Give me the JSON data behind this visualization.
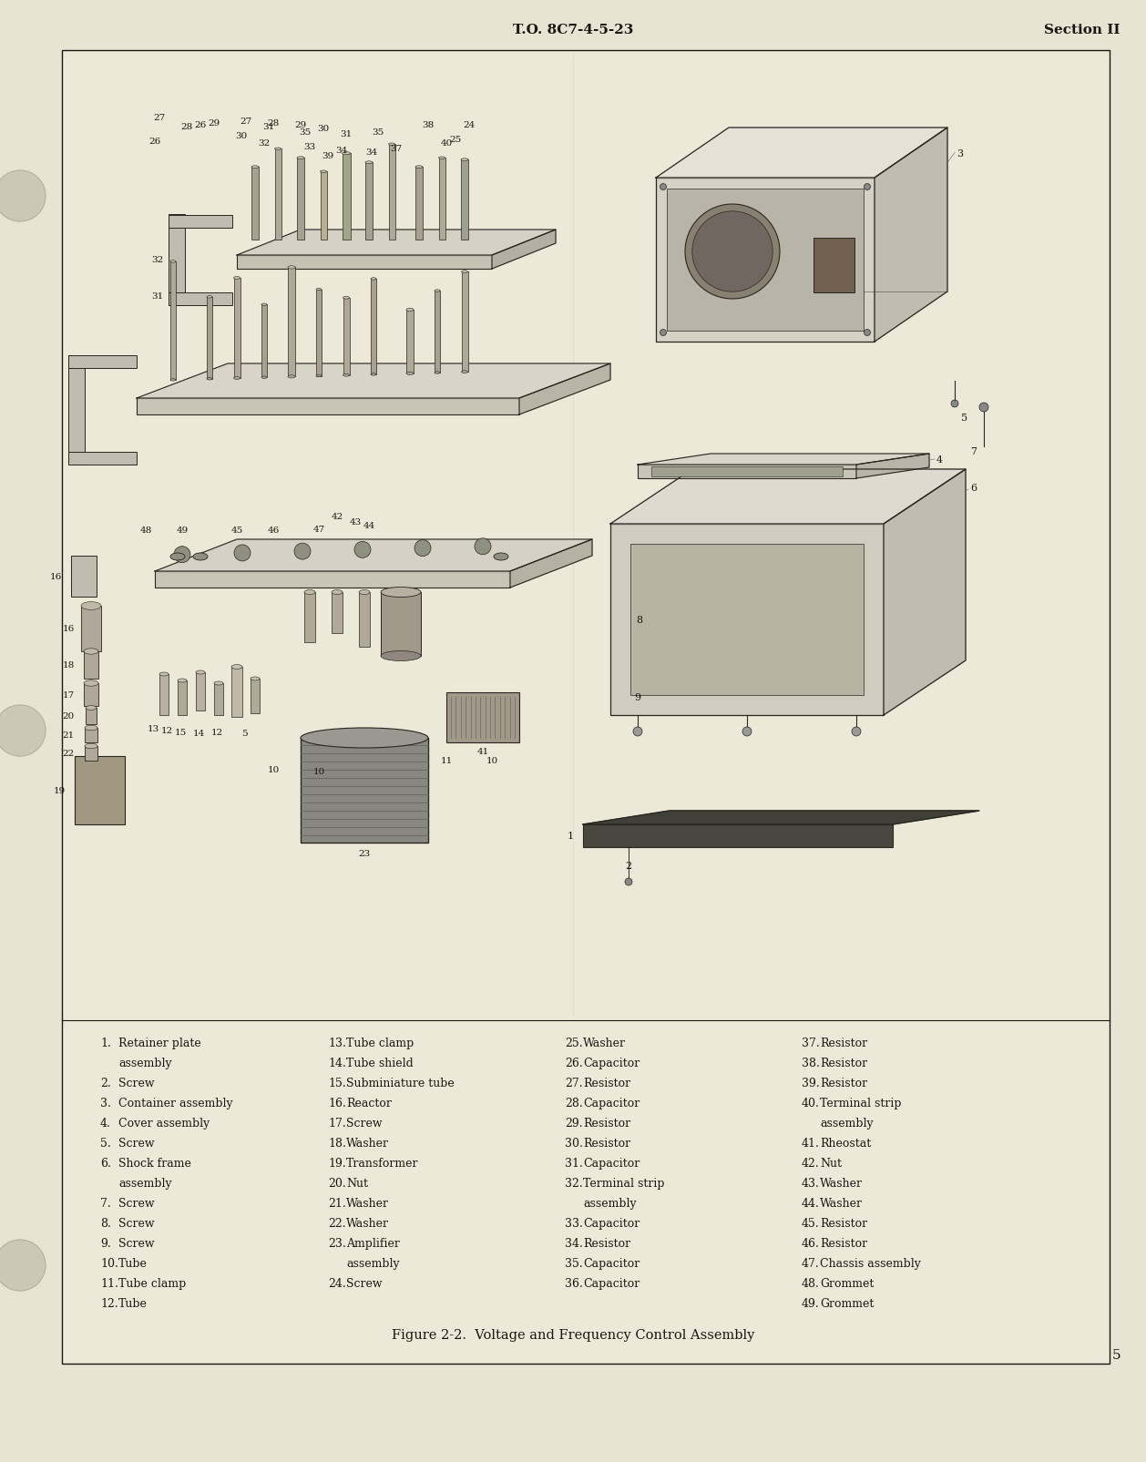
{
  "page_bg": "#e8e4d4",
  "content_bg": "#ede9d8",
  "text_color": "#1a1611",
  "border_color": "#1a1611",
  "line_color": "#2a2520",
  "header_left": "T.O. 8C7-4-5-23",
  "header_right": "Section II",
  "figure_caption": "Figure 2-2.  Voltage and Frequency Control Assembly",
  "page_number": "5",
  "parts_col1": [
    [
      "1.",
      "Retainer plate",
      "     assembly"
    ],
    [
      "2.",
      "Screw",
      ""
    ],
    [
      "3.",
      "Container assembly",
      ""
    ],
    [
      "4.",
      "Cover assembly",
      ""
    ],
    [
      "5.",
      "Screw",
      ""
    ],
    [
      "6.",
      "Shock frame",
      "     assembly"
    ],
    [
      "7.",
      "Screw",
      ""
    ],
    [
      "8.",
      "Screw",
      ""
    ],
    [
      "9.",
      "Screw",
      ""
    ],
    [
      "10.",
      "Tube",
      ""
    ],
    [
      "11.",
      "Tube clamp",
      ""
    ],
    [
      "12.",
      "Tube",
      ""
    ]
  ],
  "parts_col2": [
    [
      "13.",
      "Tube clamp",
      ""
    ],
    [
      "14.",
      "Tube shield",
      ""
    ],
    [
      "15.",
      "Subminiature tube",
      ""
    ],
    [
      "16.",
      "Reactor",
      ""
    ],
    [
      "17.",
      "Screw",
      ""
    ],
    [
      "18.",
      "Washer",
      ""
    ],
    [
      "19.",
      "Transformer",
      ""
    ],
    [
      "20.",
      "Nut",
      ""
    ],
    [
      "21.",
      "Washer",
      ""
    ],
    [
      "22.",
      "Washer",
      ""
    ],
    [
      "23.",
      "Amplifier",
      "      assembly"
    ],
    [
      "24.",
      "Screw",
      ""
    ]
  ],
  "parts_col3": [
    [
      "25.",
      "Washer",
      ""
    ],
    [
      "26.",
      "Capacitor",
      ""
    ],
    [
      "27.",
      "Resistor",
      ""
    ],
    [
      "28.",
      "Capacitor",
      ""
    ],
    [
      "29.",
      "Resistor",
      ""
    ],
    [
      "30.",
      "Resistor",
      ""
    ],
    [
      "31.",
      "Capacitor",
      ""
    ],
    [
      "32.",
      "Terminal strip",
      "      assembly"
    ],
    [
      "33.",
      "Capacitor",
      ""
    ],
    [
      "34.",
      "Resistor",
      ""
    ],
    [
      "35.",
      "Capacitor",
      ""
    ],
    [
      "36.",
      "Capacitor",
      ""
    ]
  ],
  "parts_col4": [
    [
      "37.",
      "Resistor",
      ""
    ],
    [
      "38.",
      "Resistor",
      ""
    ],
    [
      "39.",
      "Resistor",
      ""
    ],
    [
      "40.",
      "Terminal strip",
      "      assembly"
    ],
    [
      "41.",
      "Rheostat",
      ""
    ],
    [
      "42.",
      "Nut",
      ""
    ],
    [
      "43.",
      "Washer",
      ""
    ],
    [
      "44.",
      "Washer",
      ""
    ],
    [
      "45.",
      "Resistor",
      ""
    ],
    [
      "46.",
      "Resistor",
      ""
    ],
    [
      "47.",
      "Chassis assembly",
      ""
    ],
    [
      "48.",
      "Grommet",
      ""
    ],
    [
      "49.",
      "Grommet",
      ""
    ]
  ]
}
